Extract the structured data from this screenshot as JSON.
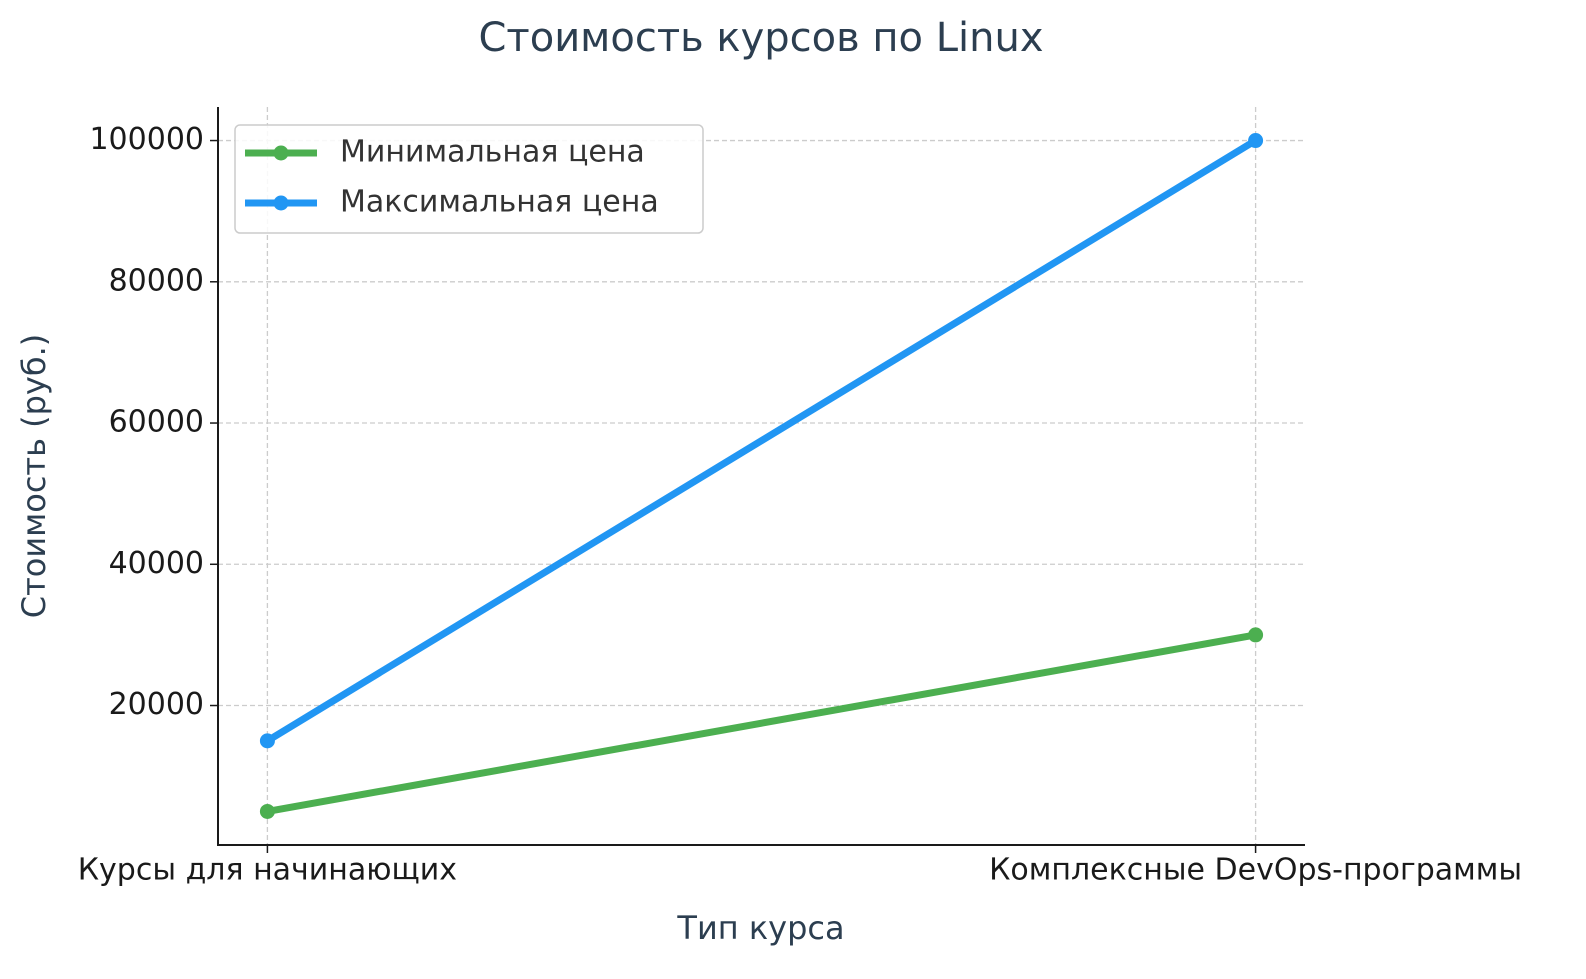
{
  "chart_data": {
    "type": "line",
    "title": "Стоимость курсов по Linux",
    "x_label": "Тип курса",
    "y_label": "Стоимость (руб.)",
    "categories": [
      "Курсы для начинающих",
      "Комплексные DevOps-программы"
    ],
    "series": [
      {
        "name": "Минимальная цена",
        "color": "#4caf50",
        "values": [
          5000,
          30000
        ]
      },
      {
        "name": "Максимальная цена",
        "color": "#2196f3",
        "values": [
          15000,
          100000
        ]
      }
    ],
    "ylim": [
      250,
      104750
    ],
    "yticks": [
      20000,
      40000,
      60000,
      80000,
      100000
    ],
    "grid": true,
    "legend": "upper-left"
  }
}
